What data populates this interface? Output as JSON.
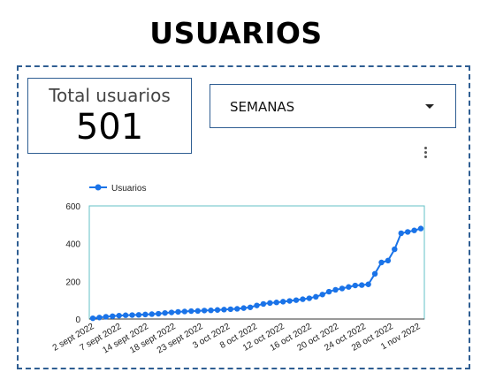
{
  "page": {
    "title": "USUARIOS"
  },
  "scorecard": {
    "label": "Total usuarios",
    "value": "501"
  },
  "filter": {
    "selected": "SEMANAS"
  },
  "icons": {
    "menu": "more-vert-icon",
    "dropdown": "arrow-drop-down-icon"
  },
  "colors": {
    "series": "#1a73e8",
    "border": "#2f5e92",
    "plot_frame": "#63c2c7"
  },
  "chart_data": {
    "type": "line",
    "legend": [
      "Usuarios"
    ],
    "legend_position": "top-left",
    "grid": false,
    "ylim": [
      0,
      600
    ],
    "yticks": [
      "0",
      "200",
      "400",
      "600"
    ],
    "xticks": [
      "2 sept 2022",
      "7 sept 2022",
      "14 sept 2022",
      "18 sept 2022",
      "23 sept 2022",
      "3 oct 2022",
      "8 oct 2022",
      "12 oct 2022",
      "16 oct 2022",
      "20 oct 2022",
      "24 oct 2022",
      "28 oct 2022",
      "1 nov 2022"
    ],
    "series": [
      {
        "name": "Usuarios",
        "values": [
          4,
          8,
          12,
          15,
          18,
          20,
          21,
          22,
          24,
          26,
          28,
          32,
          35,
          38,
          40,
          42,
          43,
          45,
          46,
          48,
          50,
          52,
          54,
          58,
          62,
          72,
          80,
          85,
          88,
          92,
          96,
          100,
          105,
          110,
          118,
          130,
          145,
          155,
          162,
          170,
          178,
          180,
          184,
          240,
          300,
          310,
          370,
          455,
          462,
          470,
          480
        ]
      }
    ]
  }
}
